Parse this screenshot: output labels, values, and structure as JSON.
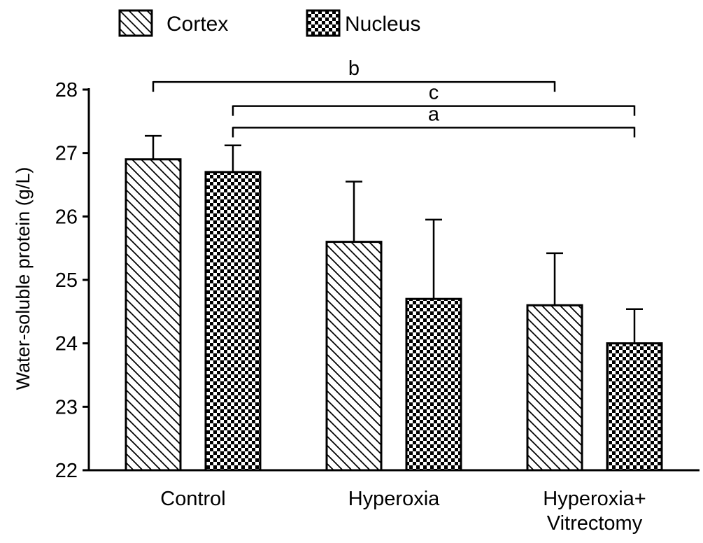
{
  "chart_data": {
    "type": "bar",
    "ylabel": "Water-soluble protein (g/L)",
    "ylim": [
      22,
      28
    ],
    "yticks": [
      22,
      23,
      24,
      25,
      26,
      27,
      28
    ],
    "grid": false,
    "legend_position": "top-left",
    "categories": [
      [
        "Control"
      ],
      [
        "Hyperoxia"
      ],
      [
        "Hyperoxia+",
        "Vitrectomy"
      ]
    ],
    "series": [
      {
        "name": "Cortex",
        "pattern": "diagonal-hatch",
        "values": [
          26.9,
          25.6,
          24.6
        ],
        "errors": [
          0.37,
          0.95,
          0.82
        ]
      },
      {
        "name": "Nucleus",
        "pattern": "checkerboard",
        "values": [
          26.7,
          24.7,
          24.0
        ],
        "errors": [
          0.42,
          1.25,
          0.54
        ]
      }
    ],
    "significance": [
      {
        "label": "b",
        "from": {
          "category": 0,
          "series": 0
        },
        "to": {
          "category": 2,
          "series": 0
        },
        "y": 28.12
      },
      {
        "label": "c",
        "from": {
          "category": 0,
          "series": 1
        },
        "to": {
          "category": 2,
          "series": 1
        },
        "y": 27.74
      },
      {
        "label": "a",
        "from": {
          "category": 0,
          "series": 1
        },
        "to": {
          "category": 2,
          "series": 1
        },
        "y": 27.4
      }
    ],
    "colors": {
      "stroke": "#000000",
      "fill": "#ffffff"
    }
  }
}
